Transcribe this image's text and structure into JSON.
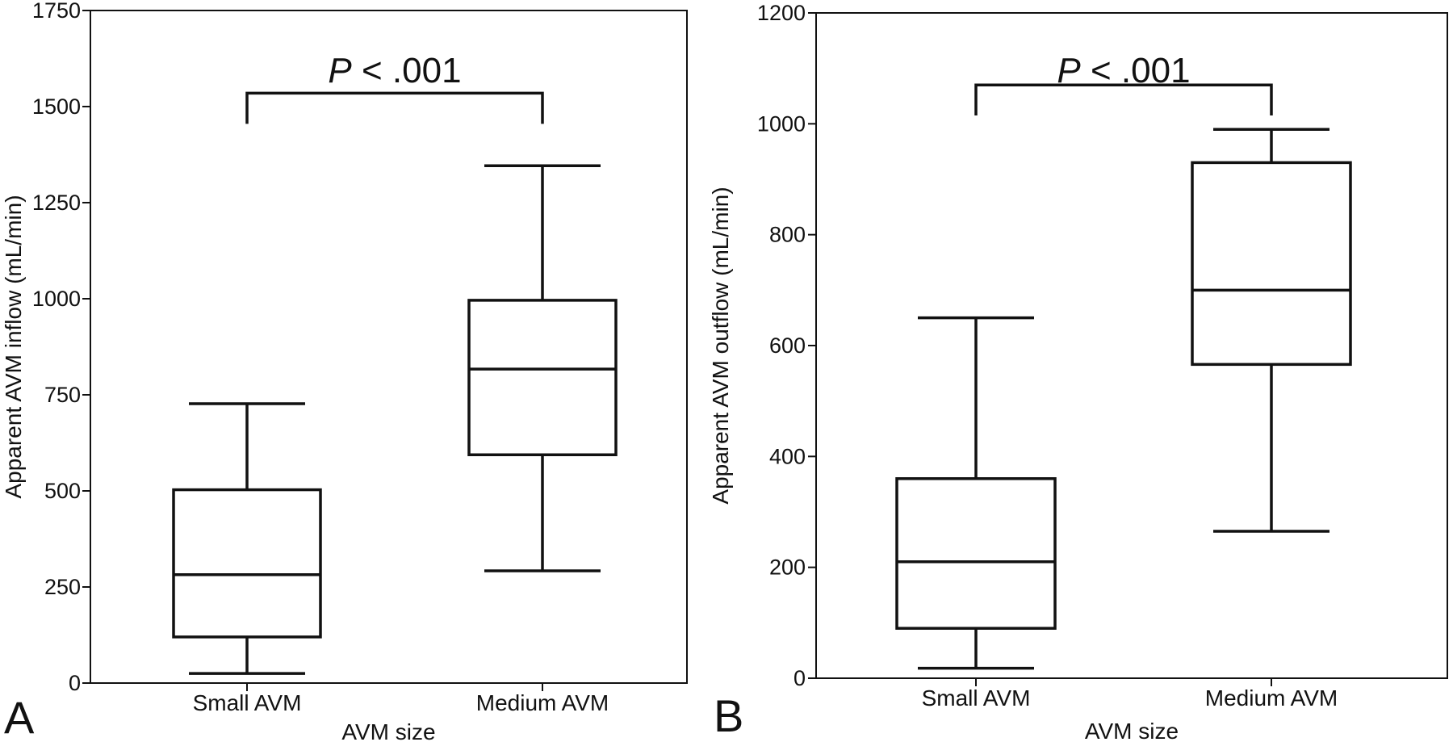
{
  "chart_data": [
    {
      "type": "box",
      "panel_label": "A",
      "xlabel": "AVM size",
      "ylabel": "Apparent AVM inflow (mL/min)",
      "ylim": [
        0,
        1750
      ],
      "yticks": [
        0,
        250,
        500,
        750,
        1000,
        1250,
        1500,
        1750
      ],
      "categories": [
        "Small AVM",
        "Medium AVM"
      ],
      "boxes": [
        {
          "category": "Small AVM",
          "min": 25,
          "q1": 120,
          "median": 282,
          "q3": 503,
          "max": 727
        },
        {
          "category": "Medium AVM",
          "min": 292,
          "q1": 594,
          "median": 817,
          "q3": 996,
          "max": 1346
        }
      ],
      "annotation": {
        "text_italic": "P",
        "text_rest": " < .001",
        "bracket_from": "Small AVM",
        "bracket_to": "Medium AVM",
        "bracket_y": 1535,
        "bracket_drop": 1455
      },
      "grid": false,
      "legend": "none"
    },
    {
      "type": "box",
      "panel_label": "B",
      "xlabel": "AVM size",
      "ylabel": "Apparent AVM outflow (mL/min)",
      "ylim": [
        0,
        1200
      ],
      "yticks": [
        0,
        200,
        400,
        600,
        800,
        1000,
        1200
      ],
      "categories": [
        "Small AVM",
        "Medium AVM"
      ],
      "boxes": [
        {
          "category": "Small AVM",
          "min": 18,
          "q1": 90,
          "median": 210,
          "q3": 360,
          "max": 650
        },
        {
          "category": "Medium AVM",
          "min": 265,
          "q1": 566,
          "median": 700,
          "q3": 930,
          "max": 990
        }
      ],
      "annotation": {
        "text_italic": "P",
        "text_rest": " < .001",
        "bracket_from": "Small AVM",
        "bracket_to": "Medium AVM",
        "bracket_y": 1070,
        "bracket_drop": 1015
      },
      "grid": false,
      "legend": "none"
    }
  ]
}
